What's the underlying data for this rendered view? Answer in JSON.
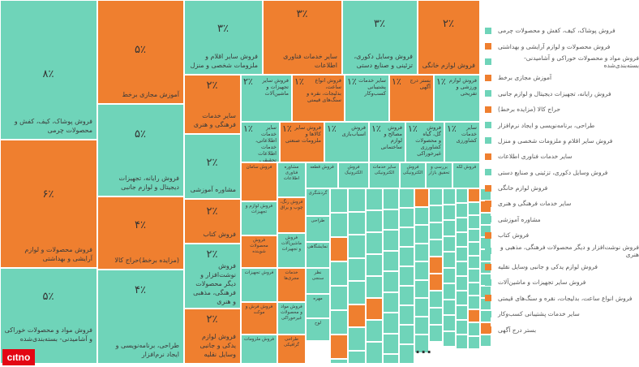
{
  "chart_data": {
    "type": "treemap",
    "colors": {
      "green": "#6fd4b9",
      "orange": "#ef7f2f"
    },
    "items": [
      {
        "label": "فروش پوشاک، کیف، کفش و محصولات چرمی",
        "value": "۸٪",
        "color": "green"
      },
      {
        "label": "فروش محصولات و لوازم آرایشی و بهداشتی",
        "value": "۶٪",
        "color": "orange"
      },
      {
        "label": "فروش مواد و محصولات خوراکی و آشامیدنی- بسته‌بندی‌شده",
        "value": "۵٪",
        "color": "green"
      },
      {
        "label": "آموزش مجازی برخط",
        "value": "۵٪",
        "color": "orange"
      },
      {
        "label": "فروش رایانه، تجهیزات دیجیتال و لوازم جانبی",
        "value": "۵٪",
        "color": "green"
      },
      {
        "label": "(مزایده برخط)حراج کالا",
        "value": "۴٪",
        "color": "orange"
      },
      {
        "label": "طراحی، برنامه‌نویسی و ایجاد نرم‌افزار",
        "value": "۴٪",
        "color": "green"
      },
      {
        "label": "فروش سایر اقلام و ملزومات شخصی و منزل",
        "value": "۳٪",
        "color": "green"
      },
      {
        "label": "سایر خدمات فناوری اطلاعات",
        "value": "۳٪",
        "color": "orange"
      },
      {
        "label": "فروش وسایل دکوری، تزئینی و صنایع دستی",
        "value": "۳٪",
        "color": "green"
      },
      {
        "label": "فروش لوازم خانگی",
        "value": "۲٪",
        "color": "orange"
      },
      {
        "label": "سایر خدمات فرهنگی و هنری",
        "value": "۲٪",
        "color": "orange"
      },
      {
        "label": "مشاوره آموزشی",
        "value": "۲٪",
        "color": "green"
      },
      {
        "label": "فروش کتاب",
        "value": "۲٪",
        "color": "orange"
      },
      {
        "label": "فروش نوشت‌افزار و دیگر محصولات فرهنگی، مذهبی و هنری",
        "value": "۲٪",
        "color": "green"
      },
      {
        "label": "فروش لوازم یدکی و جانبی وسایل نقلیه",
        "value": "۲٪",
        "color": "orange"
      },
      {
        "label": "فروش سایر تجهیزات و ماشین‌آلات",
        "value": "۲٪",
        "color": "green"
      },
      {
        "label": "فروش انواع ساعت، بدلیجات، نقره و سنگ‌های قیمتی",
        "value": "۱٪",
        "color": "orange"
      },
      {
        "label": "سایر خدمات پشتیبانی کسب‌وکار",
        "value": "۱٪",
        "color": "green"
      },
      {
        "label": "بستر درج آگهی",
        "value": "۱٪",
        "color": "orange"
      },
      {
        "label": "فروش لوازم ورزشی و تفریحی",
        "value": "۱٪",
        "color": "green"
      },
      {
        "label": "سایر خدمات اطلاعاتی، خدمات اطلاعات تحقیقی، مطبعه و",
        "value": "۱٪",
        "color": "green"
      },
      {
        "label": "فروش سایر کالاها و ملزومات صنعتی",
        "value": "۱٪",
        "color": "orange"
      },
      {
        "label": "فروش اسباب‌بازی",
        "value": "۱٪",
        "color": "green"
      },
      {
        "label": "فروش مصالح و لوازم ساختمانی",
        "value": "۱٪",
        "color": "green"
      },
      {
        "label": "فروش گل، گیاه و محصولات کشاورزی غیرخوراکی",
        "value": "۱٪",
        "color": "green"
      },
      {
        "label": "سایر خدمات کشاورزی",
        "value": "۱٪",
        "color": "green"
      }
    ],
    "small_items": [
      {
        "label": "فروش سامان",
        "color": "orange"
      },
      {
        "label": "فروش لوازم و تجهیزات",
        "color": "green"
      },
      {
        "label": "فروش محصولات شوینده",
        "color": "orange"
      },
      {
        "label": "فروش تجهیزات",
        "color": "green"
      },
      {
        "label": "فروش فرش و موکت",
        "color": "orange"
      },
      {
        "label": "فروش ملزومات",
        "color": "green"
      },
      {
        "label": "مشاوره فناوری اطلاعات",
        "color": "green"
      },
      {
        "label": "فروش رنگ، چوب و یراق",
        "color": "orange"
      },
      {
        "label": "فروش ماشین‌آلات و تجهیزات",
        "color": "green"
      },
      {
        "label": "خدمات مجری‌ها",
        "color": "orange"
      },
      {
        "label": "فروش مواد و محصولات غیرخوراکی",
        "color": "green"
      },
      {
        "label": "طراحی گرافیکی",
        "color": "orange"
      },
      {
        "label": "گردشگری",
        "color": "green"
      },
      {
        "label": "طراحی",
        "color": "green"
      },
      {
        "label": "نمایشگاهی",
        "color": "green"
      },
      {
        "label": "نظر سنجی",
        "color": "green"
      },
      {
        "label": "مهره",
        "color": "green"
      },
      {
        "label": "لوح",
        "color": "green"
      },
      {
        "label": "فروش قطعه",
        "color": "green"
      },
      {
        "label": "فروش الکترونیک",
        "color": "green"
      },
      {
        "label": "سایر خدمات الکترونیکی",
        "color": "green"
      },
      {
        "label": "فروش الکترونیکی",
        "color": "green"
      },
      {
        "label": "بررسی و تحقیق بازار",
        "color": "green"
      },
      {
        "label": "فروش لکه",
        "color": "green"
      }
    ],
    "more_indicator": "..."
  },
  "legend": [
    {
      "label": "فروش پوشاک، کیف، کفش و محصولات چرمی",
      "color": "green"
    },
    {
      "label": "فروش محصولات و لوازم آرایشی و بهداشتی",
      "color": "orange"
    },
    {
      "label": "فروش مواد و محصولات خوراکی و آشامیدنی- بسته‌بندی‌شده",
      "color": "green"
    },
    {
      "label": "آموزش مجازی برخط",
      "color": "orange"
    },
    {
      "label": "فروش رایانه، تجهیزات دیجیتال و لوازم جانبی",
      "color": "green"
    },
    {
      "label": "حراج کالا (مزایده برخط)",
      "color": "orange"
    },
    {
      "label": "طراحی، برنامه‌نویسی و ایجاد نرم‌افزار",
      "color": "green"
    },
    {
      "label": "فروش سایر اقلام و ملزومات شخصی و منزل",
      "color": "green"
    },
    {
      "label": "سایر خدمات فناوری اطلاعات",
      "color": "orange"
    },
    {
      "label": "فروش وسایل دکوری، تزئینی و صنایع دستی",
      "color": "green"
    },
    {
      "label": "فروش لوازم خانگی",
      "color": "orange"
    },
    {
      "label": "سایر خدمات فرهنگی و هنری",
      "color": "orange"
    },
    {
      "label": "مشاوره آموزشی",
      "color": "green"
    },
    {
      "label": "فروش کتاب",
      "color": "orange"
    },
    {
      "label": "فروش نوشت‌افزار و دیگر محصولات فرهنگی، مذهبی و هنری",
      "color": "green"
    },
    {
      "label": "فروش لوازم یدکی و جانبی وسایل نقلیه",
      "color": "orange"
    },
    {
      "label": "فروش سایر تجهیزات و ماشین‌آلات",
      "color": "green"
    },
    {
      "label": "فروش انواع ساعت، بدلیجات، نقره و سنگ‌های قیمتی",
      "color": "orange"
    },
    {
      "label": "سایر خدمات پشتیبانی کسب‌وکار",
      "color": "green"
    },
    {
      "label": "بستر درج آگهی",
      "color": "orange"
    }
  ],
  "logo_text": "citna"
}
